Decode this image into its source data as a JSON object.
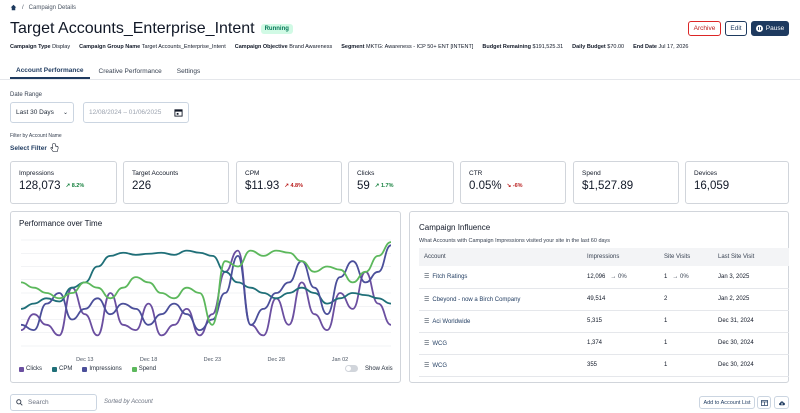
{
  "breadcrumb": {
    "page": "Campaign Details"
  },
  "header": {
    "title": "Target Accounts_Enterprise_Intent",
    "status": "Running"
  },
  "actions": {
    "archive": "Archive",
    "edit": "Edit",
    "pause": "Pause"
  },
  "meta": [
    {
      "label": "Campaign Type",
      "value": "Display"
    },
    {
      "label": "Campaign Group Name",
      "value": "Target Accounts_Enterprise_Intent"
    },
    {
      "label": "Campaign Objective",
      "value": "Brand Awareness"
    },
    {
      "label": "Segment",
      "value": "MKTG: Awareness - ICP 50+ ENT [INTENT]"
    },
    {
      "label": "Budget Remaining",
      "value": "$191,525.31"
    },
    {
      "label": "Daily Budget",
      "value": "$70.00"
    },
    {
      "label": "End Date",
      "value": "Jul 17, 2026"
    }
  ],
  "tabs": [
    "Account Performance",
    "Creative Performance",
    "Settings"
  ],
  "filters": {
    "date_range_label": "Date Range",
    "date_range_value": "Last 30 Days",
    "start_date": "12/08/2024",
    "end_date": "01/06/2025",
    "account_filter_label": "Filter by Account Name",
    "account_filter_link": "Select Filter"
  },
  "stats": [
    {
      "label": "Impressions",
      "value": "128,073",
      "change": "8.2%",
      "dir": "up"
    },
    {
      "label": "Target Accounts",
      "value": "226",
      "change": "",
      "dir": ""
    },
    {
      "label": "CPM",
      "value": "$11.93",
      "change": "4.8%",
      "dir": "up-red"
    },
    {
      "label": "Clicks",
      "value": "59",
      "change": "1.7%",
      "dir": "up"
    },
    {
      "label": "CTR",
      "value": "0.05%",
      "change": "-6%",
      "dir": "down"
    },
    {
      "label": "Spend",
      "value": "$1,527.89",
      "change": "",
      "dir": ""
    },
    {
      "label": "Devices",
      "value": "16,059",
      "change": "",
      "dir": ""
    }
  ],
  "performance": {
    "title": "Performance over Time",
    "legend": [
      {
        "name": "Clicks",
        "color": "#6b4fa0"
      },
      {
        "name": "CPM",
        "color": "#1f6f78"
      },
      {
        "name": "Impressions",
        "color": "#4b4f9a"
      },
      {
        "name": "Spend",
        "color": "#5cb85c"
      }
    ],
    "show_axis_label": "Show Axis",
    "x_ticks": [
      "Dec 13",
      "Dec 18",
      "Dec 23",
      "Dec 28",
      "Jan 02"
    ]
  },
  "chart_data": {
    "type": "line",
    "x": [
      "Dec 08",
      "Dec 09",
      "Dec 10",
      "Dec 11",
      "Dec 12",
      "Dec 13",
      "Dec 14",
      "Dec 15",
      "Dec 16",
      "Dec 17",
      "Dec 18",
      "Dec 19",
      "Dec 20",
      "Dec 21",
      "Dec 22",
      "Dec 23",
      "Dec 24",
      "Dec 25",
      "Dec 26",
      "Dec 27",
      "Dec 28",
      "Dec 29",
      "Dec 30",
      "Dec 31",
      "Jan 01",
      "Jan 02",
      "Jan 03",
      "Jan 04",
      "Jan 05",
      "Jan 06"
    ],
    "series": [
      {
        "name": "Clicks",
        "values": [
          0.15,
          0.3,
          0.2,
          0.1,
          0.55,
          0.3,
          0.1,
          0.5,
          0.2,
          0.15,
          0.4,
          0.1,
          0.2,
          0.35,
          0.1,
          0.3,
          0.7,
          0.9,
          0.2,
          0.1,
          0.45,
          0.2,
          0.6,
          0.3,
          0.15,
          0.5,
          0.35,
          0.7,
          0.4,
          0.2
        ]
      },
      {
        "name": "CPM",
        "values": [
          0.35,
          0.4,
          0.45,
          0.42,
          0.55,
          0.6,
          0.75,
          0.85,
          0.88,
          0.86,
          0.87,
          0.88,
          0.86,
          0.9,
          0.88,
          0.85,
          0.7,
          0.6,
          0.55,
          0.5,
          0.45,
          0.5,
          0.55,
          0.5,
          0.4,
          0.45,
          0.5,
          0.48,
          0.45,
          0.4
        ]
      },
      {
        "name": "Impressions",
        "values": [
          0.2,
          0.15,
          0.4,
          0.5,
          0.25,
          0.35,
          0.45,
          0.3,
          0.4,
          0.35,
          0.2,
          0.3,
          0.4,
          0.3,
          0.15,
          0.25,
          0.5,
          0.85,
          0.2,
          0.35,
          0.5,
          0.6,
          0.8,
          0.55,
          0.3,
          0.65,
          0.8,
          0.6,
          0.7,
          0.95
        ]
      },
      {
        "name": "Spend",
        "values": [
          0.6,
          0.55,
          0.5,
          0.45,
          0.5,
          0.6,
          0.55,
          0.45,
          0.55,
          0.65,
          0.6,
          0.5,
          0.45,
          0.55,
          0.5,
          0.2,
          0.8,
          0.75,
          0.9,
          0.85,
          0.9,
          0.88,
          0.8,
          0.7,
          0.75,
          0.72,
          0.6,
          0.7,
          0.85,
          0.98
        ]
      }
    ],
    "xlabel": "",
    "ylabel": ""
  },
  "influence": {
    "title": "Campaign Influence",
    "subtitle": "What Accounts with Campaign Impressions visited your site in the last 60 days",
    "columns": [
      "Account",
      "Impressions",
      "Site Visits",
      "Last Site Visit"
    ],
    "rows": [
      {
        "account": "Fitch Ratings",
        "impressions": "12,096",
        "imp_trend": "0%",
        "visits": "1",
        "visit_trend": "0%",
        "last": "Jan 3, 2025"
      },
      {
        "account": "Cbeyond - now a Birch Company",
        "impressions": "49,514",
        "imp_trend": "",
        "visits": "2",
        "visit_trend": "",
        "last": "Jan 2, 2025"
      },
      {
        "account": "Aci Worldwide",
        "impressions": "5,315",
        "imp_trend": "",
        "visits": "1",
        "visit_trend": "",
        "last": "Dec 31, 2024"
      },
      {
        "account": "WCG",
        "impressions": "1,374",
        "imp_trend": "",
        "visits": "1",
        "visit_trend": "",
        "last": "Dec 30, 2024"
      },
      {
        "account": "WCG",
        "impressions": "355",
        "imp_trend": "",
        "visits": "1",
        "visit_trend": "",
        "last": "Dec 30, 2024"
      }
    ]
  },
  "bottom": {
    "search_placeholder": "Search",
    "sorted_by": "Sorted by Account",
    "add_to_list": "Add to Account List"
  },
  "colors": {
    "primary": "#1e3a5f",
    "danger": "#dc2626",
    "success": "#15803d"
  }
}
